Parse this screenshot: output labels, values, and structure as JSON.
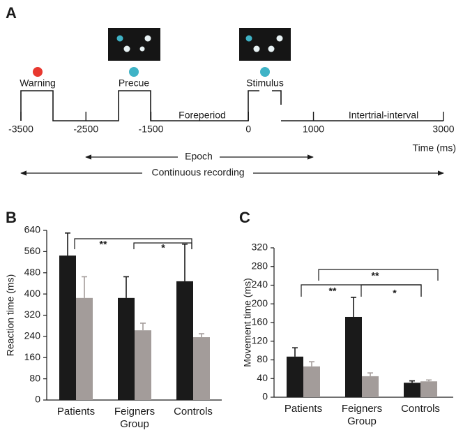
{
  "panel_a": {
    "label": "A",
    "events": [
      {
        "label": "Warning",
        "color": "#e8382f"
      },
      {
        "label": "Precue",
        "color": "#3fb3c6"
      },
      {
        "label": "Stimulus",
        "color": "#3fb3c6"
      }
    ],
    "time_axis": {
      "label": "Time (ms)",
      "xlim": [
        -3500,
        3000
      ],
      "xticks": [
        -3500,
        -2500,
        -1500,
        0,
        1000,
        3000
      ]
    },
    "periods": [
      "Foreperiod",
      "Intertrial-interval"
    ],
    "epoch": "Epoch",
    "continuous": "Continuous recording"
  },
  "chart_data": [
    {
      "type": "bar",
      "label": "B",
      "y_label": "Reaction time (ms)",
      "categories": [
        "Patients",
        "Feigners Group",
        "Controls"
      ],
      "series": [
        {
          "color": "#1a1a1a",
          "values": [
            545,
            385,
            448
          ],
          "errors": [
            85,
            80,
            140
          ]
        },
        {
          "color": "#a39c9a",
          "values": [
            385,
            263,
            237
          ],
          "errors": [
            80,
            27,
            13
          ]
        }
      ],
      "ylim": [
        0,
        640
      ],
      "yticks": [
        0,
        80,
        160,
        240,
        320,
        400,
        480,
        560,
        640
      ],
      "annotations": [
        "**",
        "*"
      ]
    },
    {
      "type": "bar",
      "label": "C",
      "y_label": "Movement time (ms)",
      "categories": [
        "Patients",
        "Feigners Group",
        "Controls"
      ],
      "series": [
        {
          "color": "#1a1a1a",
          "values": [
            87,
            172,
            31
          ],
          "errors": [
            19,
            42,
            4
          ]
        },
        {
          "color": "#a39c9a",
          "values": [
            66,
            45,
            34
          ],
          "errors": [
            10,
            7,
            3
          ]
        }
      ],
      "ylim": [
        0,
        320
      ],
      "yticks": [
        0,
        40,
        80,
        120,
        160,
        200,
        240,
        280,
        320
      ],
      "annotations": [
        "**",
        "**",
        "*"
      ]
    }
  ]
}
